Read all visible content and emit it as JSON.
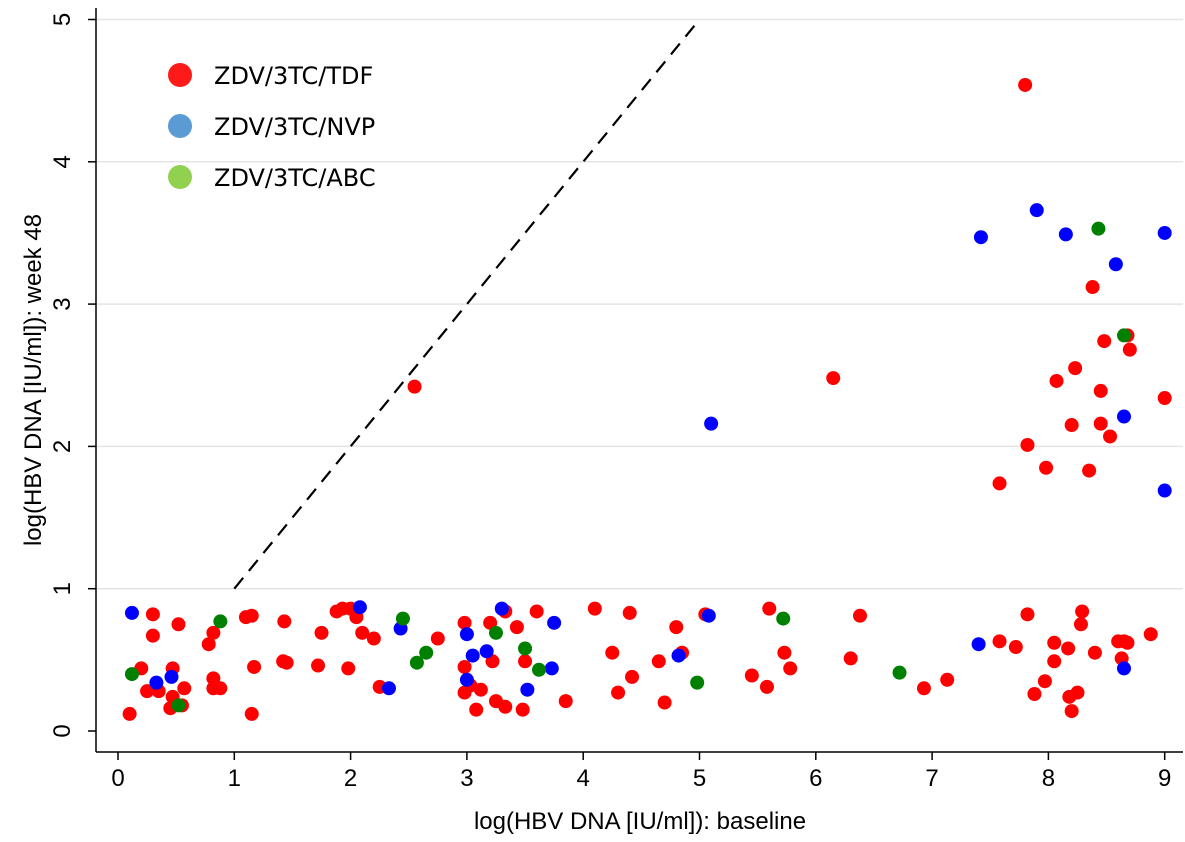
{
  "chart_data": {
    "type": "scatter",
    "xlabel": "log(HBV DNA [IU/ml]): baseline",
    "ylabel": "log(HBV DNA [IU/ml]): week 48",
    "xlim": [
      -0.1,
      9.15
    ],
    "ylim": [
      -0.1,
      5
    ],
    "x_ticks": [
      "0",
      "1",
      "2",
      "3",
      "4",
      "5",
      "6",
      "7",
      "8",
      "9"
    ],
    "y_ticks": [
      "0",
      "1",
      "2",
      "3",
      "4",
      "5"
    ],
    "grid": "horizontal",
    "legend_position": "top-left",
    "reference_line": {
      "style": "dashed",
      "points": [
        [
          1,
          1
        ],
        [
          5,
          5
        ]
      ]
    },
    "legend": [
      {
        "label": "ZDV/3TC/TDF",
        "color": "#ff1a1a"
      },
      {
        "label": "ZDV/3TC/NVP",
        "color": "#5b9bd5"
      },
      {
        "label": "ZDV/3TC/ABC",
        "color": "#92d050"
      }
    ],
    "series": [
      {
        "name": "ZDV/3TC/TDF",
        "color": "#ff0000",
        "points": [
          [
            0.1,
            0.12
          ],
          [
            0.2,
            0.44
          ],
          [
            0.25,
            0.28
          ],
          [
            0.3,
            0.67
          ],
          [
            0.3,
            0.82
          ],
          [
            0.35,
            0.28
          ],
          [
            0.45,
            0.16
          ],
          [
            0.47,
            0.44
          ],
          [
            0.47,
            0.24
          ],
          [
            0.52,
            0.75
          ],
          [
            0.55,
            0.18
          ],
          [
            0.57,
            0.3
          ],
          [
            0.78,
            0.61
          ],
          [
            0.82,
            0.69
          ],
          [
            0.82,
            0.37
          ],
          [
            0.82,
            0.3
          ],
          [
            0.88,
            0.3
          ],
          [
            1.1,
            0.8
          ],
          [
            1.15,
            0.81
          ],
          [
            1.15,
            0.12
          ],
          [
            1.17,
            0.45
          ],
          [
            1.42,
            0.49
          ],
          [
            1.43,
            0.77
          ],
          [
            1.45,
            0.48
          ],
          [
            1.72,
            0.46
          ],
          [
            1.75,
            0.69
          ],
          [
            1.88,
            0.84
          ],
          [
            1.93,
            0.86
          ],
          [
            1.98,
            0.44
          ],
          [
            2.0,
            0.86
          ],
          [
            2.05,
            0.8
          ],
          [
            2.1,
            0.69
          ],
          [
            2.2,
            0.65
          ],
          [
            2.25,
            0.31
          ],
          [
            2.55,
            2.42
          ],
          [
            2.75,
            0.65
          ],
          [
            2.98,
            0.76
          ],
          [
            2.98,
            0.45
          ],
          [
            2.98,
            0.27
          ],
          [
            3.03,
            0.32
          ],
          [
            3.08,
            0.15
          ],
          [
            3.12,
            0.29
          ],
          [
            3.2,
            0.76
          ],
          [
            3.22,
            0.49
          ],
          [
            3.25,
            0.21
          ],
          [
            3.33,
            0.84
          ],
          [
            3.33,
            0.17
          ],
          [
            3.43,
            0.73
          ],
          [
            3.48,
            0.15
          ],
          [
            3.5,
            0.49
          ],
          [
            3.6,
            0.84
          ],
          [
            3.85,
            0.21
          ],
          [
            4.1,
            0.86
          ],
          [
            4.25,
            0.55
          ],
          [
            4.3,
            0.27
          ],
          [
            4.4,
            0.83
          ],
          [
            4.42,
            0.38
          ],
          [
            4.65,
            0.49
          ],
          [
            4.7,
            0.2
          ],
          [
            4.8,
            0.73
          ],
          [
            4.85,
            0.55
          ],
          [
            5.05,
            0.82
          ],
          [
            5.45,
            0.39
          ],
          [
            5.58,
            0.31
          ],
          [
            5.6,
            0.86
          ],
          [
            5.73,
            0.55
          ],
          [
            5.78,
            0.44
          ],
          [
            6.15,
            2.48
          ],
          [
            6.3,
            0.51
          ],
          [
            6.38,
            0.81
          ],
          [
            6.93,
            0.3
          ],
          [
            7.13,
            0.36
          ],
          [
            7.58,
            0.63
          ],
          [
            7.58,
            1.74
          ],
          [
            7.72,
            0.59
          ],
          [
            7.8,
            4.54
          ],
          [
            7.82,
            2.01
          ],
          [
            7.82,
            0.82
          ],
          [
            7.88,
            0.26
          ],
          [
            7.97,
            0.35
          ],
          [
            7.98,
            1.85
          ],
          [
            8.05,
            0.62
          ],
          [
            8.05,
            0.49
          ],
          [
            8.07,
            2.46
          ],
          [
            8.17,
            0.58
          ],
          [
            8.18,
            0.24
          ],
          [
            8.2,
            2.15
          ],
          [
            8.2,
            0.14
          ],
          [
            8.23,
            2.55
          ],
          [
            8.25,
            0.27
          ],
          [
            8.28,
            0.75
          ],
          [
            8.29,
            0.84
          ],
          [
            8.35,
            1.83
          ],
          [
            8.38,
            3.12
          ],
          [
            8.4,
            0.55
          ],
          [
            8.45,
            2.39
          ],
          [
            8.45,
            2.16
          ],
          [
            8.48,
            2.74
          ],
          [
            8.53,
            2.07
          ],
          [
            8.6,
            0.63
          ],
          [
            8.63,
            0.51
          ],
          [
            8.65,
            0.63
          ],
          [
            8.68,
            0.62
          ],
          [
            8.68,
            2.78
          ],
          [
            8.7,
            2.68
          ],
          [
            8.88,
            0.68
          ],
          [
            9.0,
            2.34
          ]
        ]
      },
      {
        "name": "ZDV/3TC/NVP",
        "color": "#0000ff",
        "points": [
          [
            0.12,
            0.83
          ],
          [
            0.33,
            0.34
          ],
          [
            0.46,
            0.38
          ],
          [
            2.08,
            0.87
          ],
          [
            2.33,
            0.3
          ],
          [
            2.43,
            0.72
          ],
          [
            3.0,
            0.68
          ],
          [
            3.0,
            0.36
          ],
          [
            3.05,
            0.53
          ],
          [
            3.17,
            0.56
          ],
          [
            3.3,
            0.86
          ],
          [
            3.52,
            0.29
          ],
          [
            3.73,
            0.44
          ],
          [
            3.75,
            0.76
          ],
          [
            4.82,
            0.53
          ],
          [
            5.08,
            0.81
          ],
          [
            5.1,
            2.16
          ],
          [
            7.4,
            0.61
          ],
          [
            7.42,
            3.47
          ],
          [
            7.9,
            3.66
          ],
          [
            8.15,
            3.49
          ],
          [
            8.58,
            3.28
          ],
          [
            8.65,
            2.21
          ],
          [
            8.65,
            0.44
          ],
          [
            9.0,
            3.5
          ],
          [
            9.0,
            1.69
          ]
        ]
      },
      {
        "name": "ZDV/3TC/ABC",
        "color": "#008000",
        "points": [
          [
            0.12,
            0.4
          ],
          [
            0.52,
            0.18
          ],
          [
            0.88,
            0.77
          ],
          [
            2.45,
            0.79
          ],
          [
            2.57,
            0.48
          ],
          [
            2.65,
            0.55
          ],
          [
            3.25,
            0.69
          ],
          [
            3.5,
            0.58
          ],
          [
            3.62,
            0.43
          ],
          [
            4.98,
            0.34
          ],
          [
            5.72,
            0.79
          ],
          [
            6.72,
            0.41
          ],
          [
            8.43,
            3.53
          ],
          [
            8.65,
            2.78
          ]
        ]
      }
    ]
  }
}
